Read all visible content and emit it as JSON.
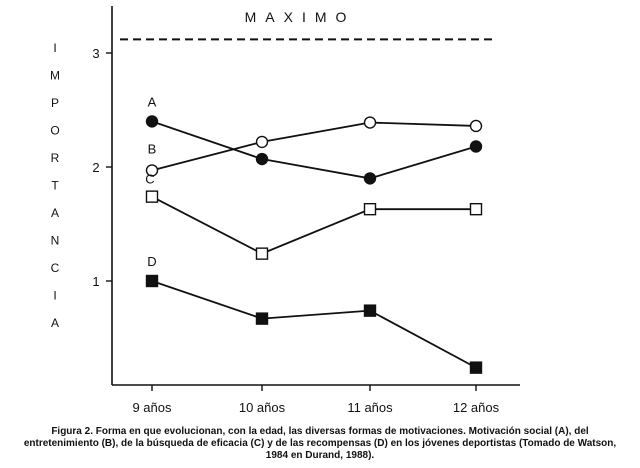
{
  "chart_data": {
    "type": "line",
    "title": "",
    "xlabel": "",
    "ylabel": "IMPORTANCIA",
    "ylim": [
      0,
      3.2
    ],
    "yticks": [
      "1",
      "2",
      "3"
    ],
    "categories": [
      "9 años",
      "10 años",
      "11 años",
      "12 años"
    ],
    "reference_line": {
      "label": "MAXIMO",
      "value": 3.12,
      "style": "dashed"
    },
    "series": [
      {
        "name": "A",
        "marker": "filled-circle",
        "values": [
          2.4,
          2.07,
          1.9,
          2.18
        ]
      },
      {
        "name": "B",
        "marker": "open-circle",
        "values": [
          1.97,
          2.22,
          2.39,
          2.36
        ]
      },
      {
        "name": "C",
        "marker": "open-square",
        "values": [
          1.74,
          1.24,
          1.63,
          1.63
        ]
      },
      {
        "name": "D",
        "marker": "filled-square",
        "values": [
          1.0,
          0.67,
          0.74,
          0.24
        ]
      }
    ],
    "grid": false,
    "legend": "none"
  },
  "caption": "Figura 2. Forma en que evolucionan, con la edad, las diversas formas de motivaciones. Motivación social (A), del entretenimiento (B), de la búsqueda de eficacia (C) y de las recompensas (D) en los jóvenes deportistas (Tomado de Watson, 1984 en Durand, 1988).",
  "colors": {
    "ink": "#111111"
  }
}
